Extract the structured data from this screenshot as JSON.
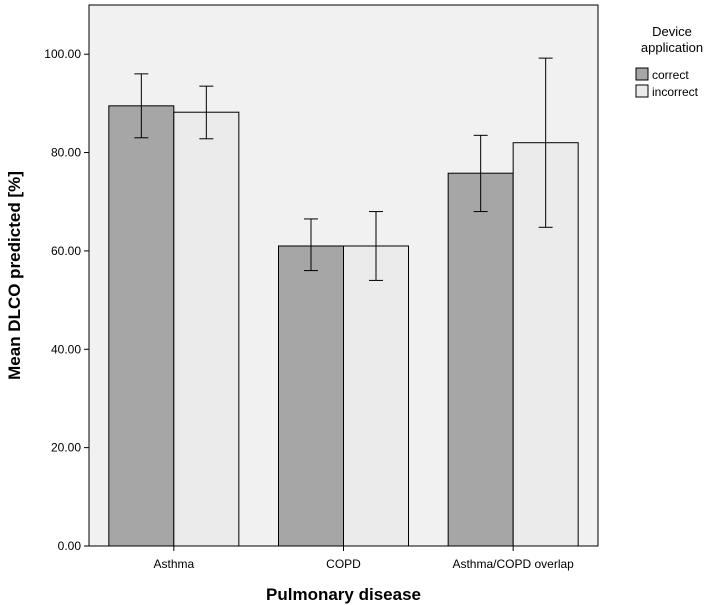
{
  "chart_data": {
    "type": "bar",
    "title": "",
    "xlabel": "Pulmonary disease",
    "ylabel": "Mean DLCO predicted [%]",
    "categories": [
      "Asthma",
      "COPD",
      "Asthma/COPD overlap"
    ],
    "ylim": [
      0,
      110
    ],
    "yticks": [
      0,
      20,
      40,
      60,
      80,
      100
    ],
    "ytick_labels": [
      "0.00",
      "20.00",
      "40.00",
      "60.00",
      "80.00",
      "100.00"
    ],
    "grid": false,
    "legend": {
      "title_lines": [
        "Device",
        "application"
      ],
      "placement": "top-right-outside"
    },
    "series": [
      {
        "name": "correct",
        "color": "#a6a6a6",
        "values": [
          89.5,
          61.0,
          75.8
        ],
        "error_low": [
          83.0,
          56.0,
          68.0
        ],
        "error_high": [
          96.0,
          66.5,
          83.5
        ]
      },
      {
        "name": "incorrect",
        "color": "#ebebeb",
        "values": [
          88.2,
          61.0,
          82.0
        ],
        "error_low": [
          82.8,
          54.0,
          64.8
        ],
        "error_high": [
          93.5,
          68.0,
          99.2
        ]
      }
    ],
    "plot_background": "#f1f1f1",
    "bar_edge_color": "#000000"
  }
}
